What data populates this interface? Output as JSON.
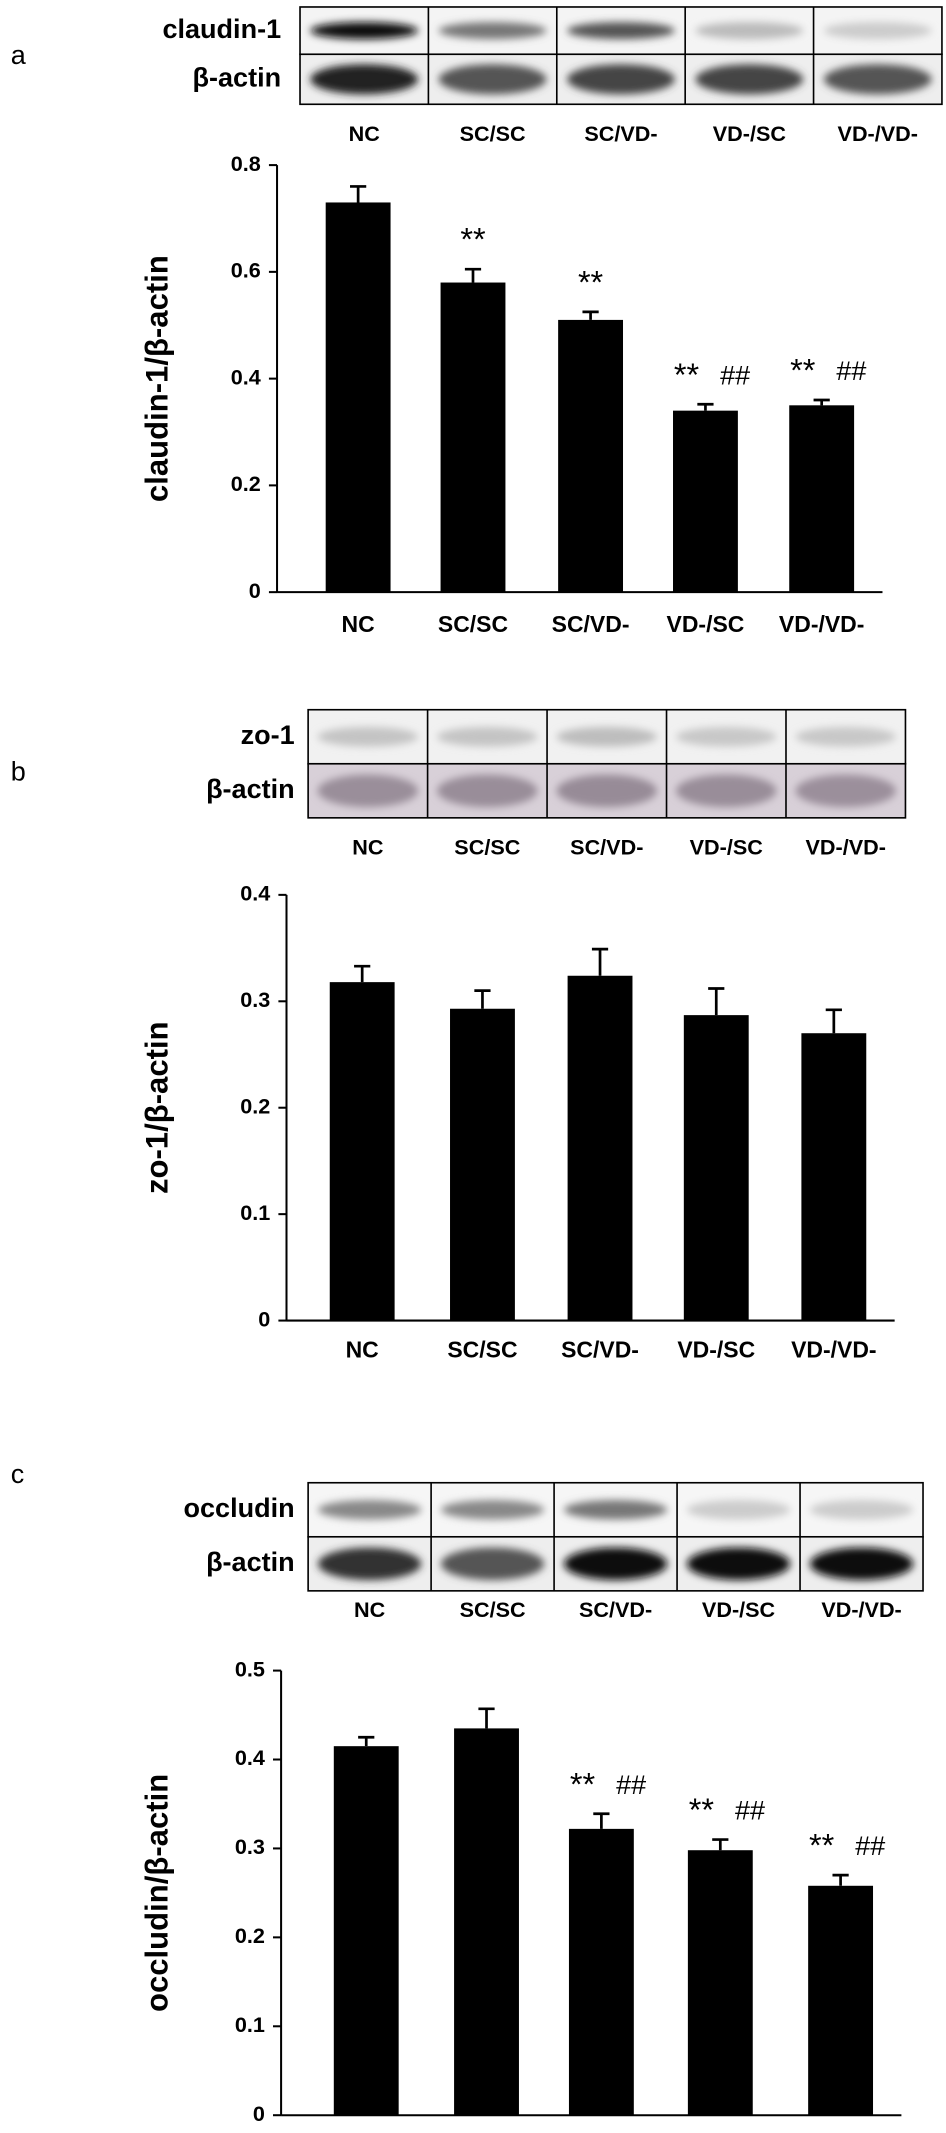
{
  "chart_data": [
    {
      "type": "bar",
      "panel": "a",
      "blot_rows": [
        "claudin-1",
        "β-actin"
      ],
      "categories": [
        "NC",
        "SC/SC",
        "SC/VD-",
        "VD-/SC",
        "VD-/VD-"
      ],
      "values": [
        0.73,
        0.58,
        0.51,
        0.34,
        0.35
      ],
      "errors": [
        0.03,
        0.025,
        0.015,
        0.012,
        0.01
      ],
      "stars": [
        null,
        "**",
        "**",
        "**",
        "**"
      ],
      "hashes": [
        null,
        null,
        null,
        "##",
        "##"
      ],
      "ylabel": "claudin-1/β-actin",
      "ylim": [
        0,
        0.8
      ],
      "yticks": [
        0,
        0.2,
        0.4,
        0.6,
        0.8
      ],
      "color": "#000000"
    },
    {
      "type": "bar",
      "panel": "b",
      "blot_rows": [
        "zo-1",
        "β-actin"
      ],
      "categories": [
        "NC",
        "SC/SC",
        "SC/VD-",
        "VD-/SC",
        "VD-/VD-"
      ],
      "values": [
        0.318,
        0.293,
        0.324,
        0.287,
        0.27
      ],
      "errors": [
        0.015,
        0.017,
        0.025,
        0.025,
        0.022
      ],
      "ylabel": "zo-1/β-actin",
      "ylim": [
        0,
        0.4
      ],
      "yticks": [
        0,
        0.1,
        0.2,
        0.3,
        0.4
      ],
      "color": "#000000"
    },
    {
      "type": "bar",
      "panel": "c",
      "blot_rows": [
        "occludin",
        "β-actin"
      ],
      "categories": [
        "NC",
        "SC/SC",
        "SC/VD-",
        "VD-/SC",
        "VD-/VD-"
      ],
      "values": [
        0.415,
        0.435,
        0.322,
        0.298,
        0.258
      ],
      "errors": [
        0.01,
        0.022,
        0.017,
        0.012,
        0.012
      ],
      "stars": [
        null,
        null,
        "**",
        "**",
        "**"
      ],
      "hashes": [
        null,
        null,
        "##",
        "##",
        "##"
      ],
      "ylabel": "occludin/β-actin",
      "ylim": [
        0,
        0.5
      ],
      "yticks": [
        0,
        0.1,
        0.2,
        0.3,
        0.4,
        0.5
      ],
      "color": "#000000"
    }
  ]
}
